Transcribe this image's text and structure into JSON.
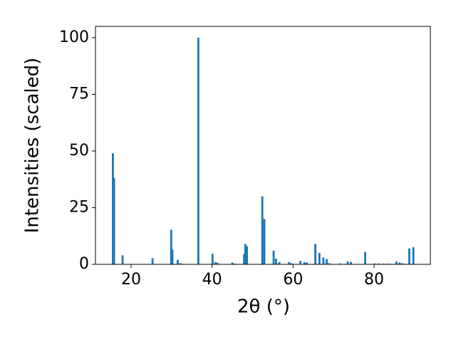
{
  "chart_data": {
    "type": "bar",
    "xlabel": "2θ (°)",
    "ylabel": "Intensities (scaled)",
    "x": [
      15.5,
      15.8,
      17.9,
      25.3,
      29.9,
      30.2,
      31.5,
      32.2,
      36.6,
      40.1,
      40.8,
      41.3,
      45.0,
      45.6,
      47.9,
      48.2,
      48.6,
      52.4,
      52.9,
      55.2,
      55.8,
      56.6,
      59.0,
      59.6,
      61.8,
      62.8,
      63.4,
      65.5,
      66.5,
      67.5,
      68.3,
      68.9,
      71.6,
      73.5,
      74.3,
      77.8,
      80.2,
      81.2,
      82.3,
      83.6,
      85.5,
      86.3,
      87.0,
      88.7,
      89.7
    ],
    "values": [
      49,
      38,
      4,
      2.7,
      15.3,
      6.5,
      2,
      0.5,
      100,
      4.6,
      1,
      0.7,
      0.8,
      0.3,
      4.5,
      9,
      8,
      30,
      20,
      6,
      2.5,
      1,
      1,
      0.5,
      1.5,
      1,
      0.8,
      9,
      5,
      3,
      2.3,
      0.5,
      0.4,
      1.3,
      1.1,
      5.5,
      0.4,
      0.4,
      0.3,
      0.3,
      1.3,
      0.8,
      0.5,
      7,
      7.6
    ],
    "bar_width": 0.5,
    "color": "#1f77b4",
    "xlim": [
      11.2,
      93.9
    ],
    "xticks": [
      20,
      40,
      60,
      80
    ],
    "ylim": [
      0,
      105
    ],
    "yticks": [
      0,
      25,
      50,
      75,
      100
    ],
    "grid": false
  }
}
